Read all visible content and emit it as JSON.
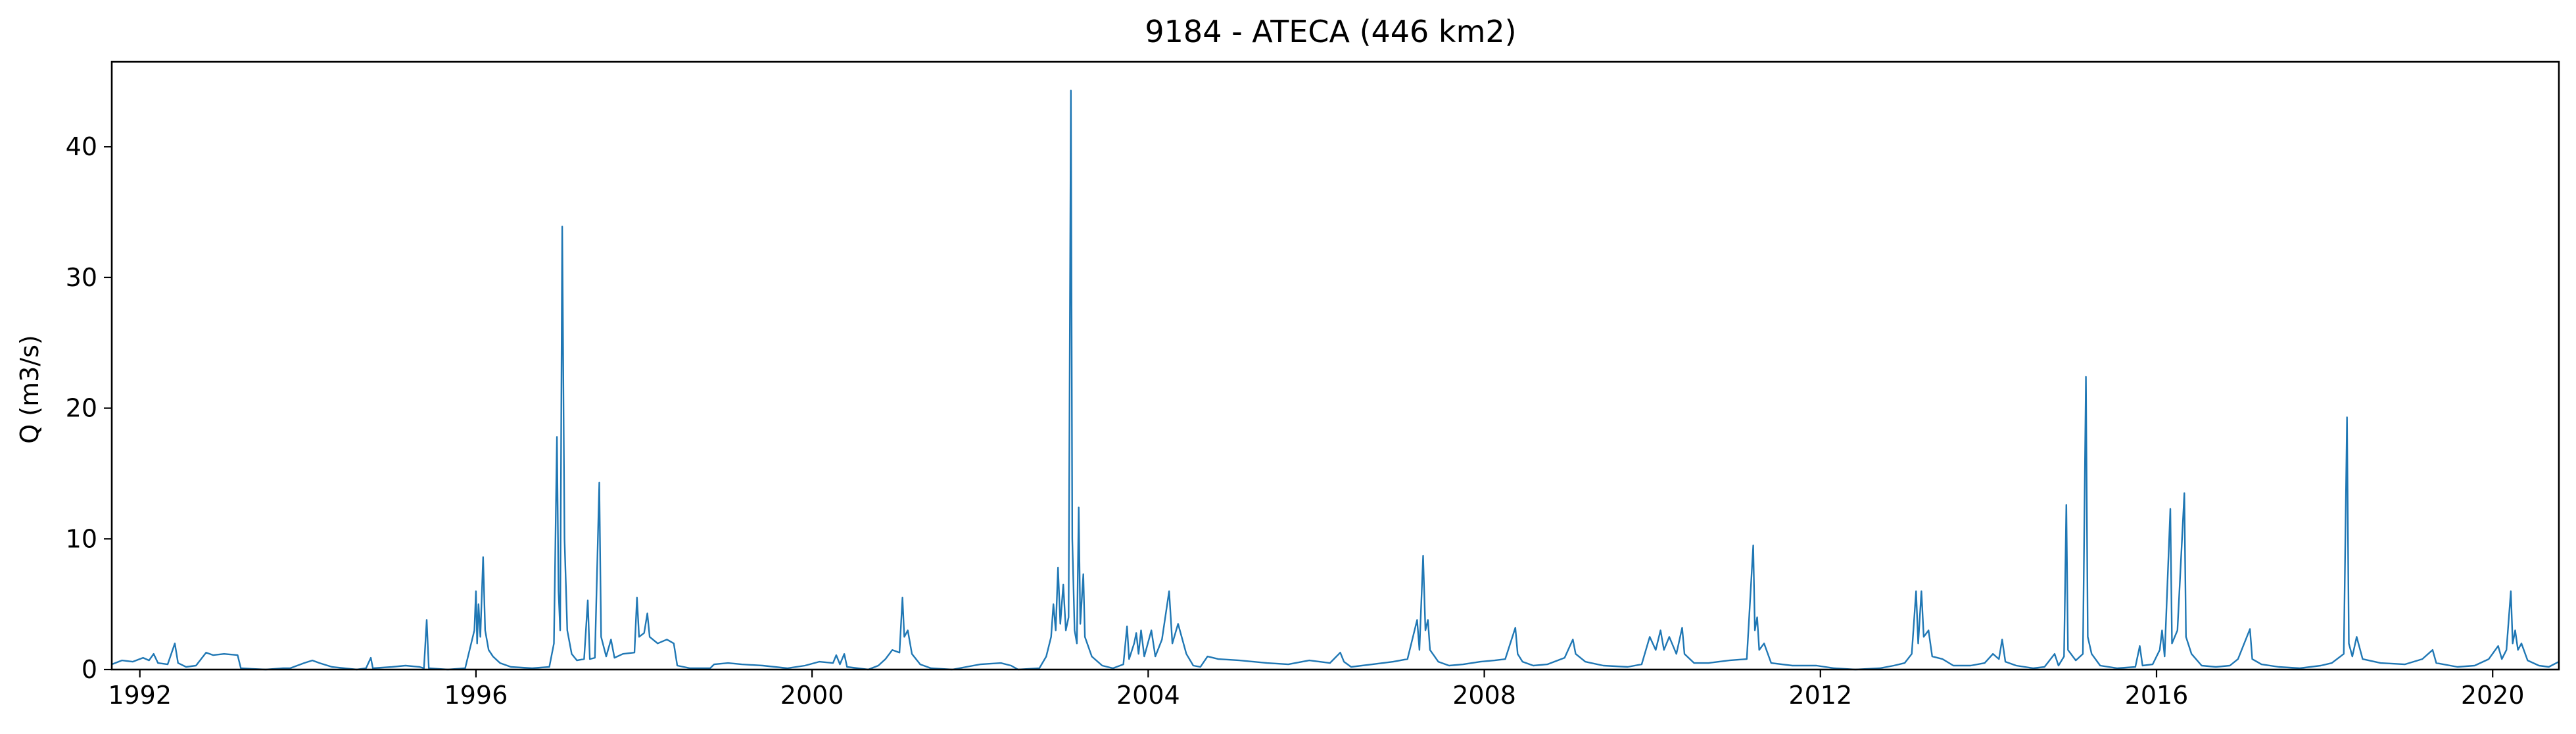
{
  "chart_data": {
    "type": "line",
    "title": "9184 - ATECA (446 km2)",
    "xlabel": "",
    "ylabel": "Q (m3/s)",
    "xlim": [
      "1991-09-01",
      "2020-10-15"
    ],
    "ylim": [
      0,
      46.5
    ],
    "x_ticks": [
      "1992",
      "1996",
      "2000",
      "2004",
      "2008",
      "2012",
      "2016",
      "2020"
    ],
    "y_ticks": [
      0,
      10,
      20,
      30,
      40
    ],
    "grid": false,
    "legend": "none",
    "series": [
      {
        "color": "#1f77b4",
        "points": [
          [
            "1991-09-01",
            0.4
          ],
          [
            "1991-10-15",
            0.7
          ],
          [
            "1991-12-01",
            0.6
          ],
          [
            "1992-01-15",
            0.9
          ],
          [
            "1992-02-10",
            0.7
          ],
          [
            "1992-03-01",
            1.2
          ],
          [
            "1992-03-20",
            0.5
          ],
          [
            "1992-05-01",
            0.4
          ],
          [
            "1992-06-01",
            2.0
          ],
          [
            "1992-06-15",
            0.5
          ],
          [
            "1992-07-20",
            0.2
          ],
          [
            "1992-09-01",
            0.3
          ],
          [
            "1992-10-15",
            1.3
          ],
          [
            "1992-11-15",
            1.1
          ],
          [
            "1993-01-01",
            1.2
          ],
          [
            "1993-03-01",
            1.1
          ],
          [
            "1993-03-15",
            0.1
          ],
          [
            "1993-07-01",
            0.0
          ],
          [
            "1993-09-15",
            0.1
          ],
          [
            "1993-10-15",
            0.1
          ],
          [
            "1993-12-15",
            0.5
          ],
          [
            "1994-01-20",
            0.7
          ],
          [
            "1994-02-20",
            0.5
          ],
          [
            "1994-04-15",
            0.2
          ],
          [
            "1994-08-01",
            0.0
          ],
          [
            "1994-09-10",
            0.1
          ],
          [
            "1994-10-01",
            0.9
          ],
          [
            "1994-10-10",
            0.1
          ],
          [
            "1995-01-01",
            0.2
          ],
          [
            "1995-03-01",
            0.3
          ],
          [
            "1995-05-01",
            0.2
          ],
          [
            "1995-05-20",
            0.1
          ],
          [
            "1995-06-01",
            3.8
          ],
          [
            "1995-06-10",
            0.1
          ],
          [
            "1995-09-01",
            0.0
          ],
          [
            "1995-11-15",
            0.1
          ],
          [
            "1995-12-25",
            3.0
          ],
          [
            "1996-01-01",
            6.0
          ],
          [
            "1996-01-06",
            2.0
          ],
          [
            "1996-01-12",
            5.0
          ],
          [
            "1996-01-20",
            2.5
          ],
          [
            "1996-02-01",
            8.6
          ],
          [
            "1996-02-10",
            3.0
          ],
          [
            "1996-02-25",
            1.5
          ],
          [
            "1996-03-15",
            1.0
          ],
          [
            "1996-04-15",
            0.5
          ],
          [
            "1996-06-01",
            0.2
          ],
          [
            "1996-09-01",
            0.1
          ],
          [
            "1996-11-15",
            0.2
          ],
          [
            "1996-12-05",
            2.0
          ],
          [
            "1996-12-18",
            17.8
          ],
          [
            "1996-12-25",
            6.0
          ],
          [
            "1997-01-01",
            3.0
          ],
          [
            "1997-01-10",
            33.9
          ],
          [
            "1997-01-20",
            10.0
          ],
          [
            "1997-02-01",
            3.0
          ],
          [
            "1997-02-20",
            1.2
          ],
          [
            "1997-03-15",
            0.7
          ],
          [
            "1997-04-15",
            0.8
          ],
          [
            "1997-05-01",
            5.3
          ],
          [
            "1997-05-10",
            0.8
          ],
          [
            "1997-06-01",
            0.9
          ],
          [
            "1997-06-20",
            14.3
          ],
          [
            "1997-06-28",
            2.5
          ],
          [
            "1997-07-20",
            1.0
          ],
          [
            "1997-08-10",
            2.3
          ],
          [
            "1997-08-25",
            0.9
          ],
          [
            "1997-10-01",
            1.2
          ],
          [
            "1997-11-20",
            1.3
          ],
          [
            "1997-12-01",
            5.5
          ],
          [
            "1997-12-10",
            2.5
          ],
          [
            "1998-01-01",
            2.8
          ],
          [
            "1998-01-15",
            4.3
          ],
          [
            "1998-01-25",
            2.5
          ],
          [
            "1998-03-01",
            2.0
          ],
          [
            "1998-04-10",
            2.3
          ],
          [
            "1998-05-10",
            2.0
          ],
          [
            "1998-05-25",
            0.3
          ],
          [
            "1998-07-20",
            0.1
          ],
          [
            "1998-10-15",
            0.1
          ],
          [
            "1998-11-01",
            0.4
          ],
          [
            "1999-01-01",
            0.5
          ],
          [
            "1999-03-01",
            0.4
          ],
          [
            "1999-06-01",
            0.3
          ],
          [
            "1999-09-15",
            0.1
          ],
          [
            "1999-12-01",
            0.3
          ],
          [
            "2000-02-01",
            0.6
          ],
          [
            "2000-04-01",
            0.5
          ],
          [
            "2000-04-15",
            1.1
          ],
          [
            "2000-05-01",
            0.4
          ],
          [
            "2000-05-20",
            1.2
          ],
          [
            "2000-06-01",
            0.2
          ],
          [
            "2000-09-01",
            0.0
          ],
          [
            "2000-10-15",
            0.3
          ],
          [
            "2000-11-15",
            0.8
          ],
          [
            "2000-12-15",
            1.5
          ],
          [
            "2001-01-15",
            1.3
          ],
          [
            "2001-01-28",
            5.5
          ],
          [
            "2001-02-05",
            2.5
          ],
          [
            "2001-02-20",
            3.0
          ],
          [
            "2001-03-10",
            1.2
          ],
          [
            "2001-04-15",
            0.4
          ],
          [
            "2001-06-01",
            0.1
          ],
          [
            "2001-09-01",
            0.0
          ],
          [
            "2001-11-01",
            0.2
          ],
          [
            "2002-01-01",
            0.4
          ],
          [
            "2002-04-01",
            0.5
          ],
          [
            "2002-05-15",
            0.3
          ],
          [
            "2002-06-15",
            0.0
          ],
          [
            "2002-09-15",
            0.1
          ],
          [
            "2002-10-15",
            1.0
          ],
          [
            "2002-11-05",
            2.5
          ],
          [
            "2002-11-15",
            5.0
          ],
          [
            "2002-11-25",
            3.0
          ],
          [
            "2002-12-05",
            7.8
          ],
          [
            "2002-12-15",
            3.5
          ],
          [
            "2002-12-28",
            6.5
          ],
          [
            "2003-01-08",
            3.0
          ],
          [
            "2003-01-20",
            4.0
          ],
          [
            "2003-01-30",
            44.3
          ],
          [
            "2003-02-05",
            10.0
          ],
          [
            "2003-02-15",
            3.0
          ],
          [
            "2003-02-25",
            2.0
          ],
          [
            "2003-03-05",
            12.4
          ],
          [
            "2003-03-12",
            3.5
          ],
          [
            "2003-03-25",
            7.3
          ],
          [
            "2003-04-01",
            2.5
          ],
          [
            "2003-05-01",
            1.0
          ],
          [
            "2003-06-15",
            0.3
          ],
          [
            "2003-08-01",
            0.1
          ],
          [
            "2003-09-15",
            0.4
          ],
          [
            "2003-10-01",
            3.3
          ],
          [
            "2003-10-10",
            0.8
          ],
          [
            "2003-11-01",
            2.0
          ],
          [
            "2003-11-10",
            2.8
          ],
          [
            "2003-11-20",
            1.2
          ],
          [
            "2003-12-01",
            3.0
          ],
          [
            "2003-12-15",
            1.0
          ],
          [
            "2004-01-15",
            3.0
          ],
          [
            "2004-02-01",
            1.0
          ],
          [
            "2004-03-01",
            2.3
          ],
          [
            "2004-04-01",
            6.0
          ],
          [
            "2004-04-15",
            2.0
          ],
          [
            "2004-05-10",
            3.5
          ],
          [
            "2004-06-15",
            1.2
          ],
          [
            "2004-07-15",
            0.3
          ],
          [
            "2004-08-15",
            0.2
          ],
          [
            "2004-09-15",
            1.0
          ],
          [
            "2004-11-01",
            0.8
          ],
          [
            "2005-02-01",
            0.7
          ],
          [
            "2005-06-01",
            0.5
          ],
          [
            "2005-09-01",
            0.4
          ],
          [
            "2005-12-01",
            0.7
          ],
          [
            "2006-03-01",
            0.5
          ],
          [
            "2006-04-15",
            1.3
          ],
          [
            "2006-05-01",
            0.6
          ],
          [
            "2006-06-01",
            0.2
          ],
          [
            "2006-09-01",
            0.4
          ],
          [
            "2006-12-01",
            0.6
          ],
          [
            "2007-02-01",
            0.8
          ],
          [
            "2007-03-15",
            3.8
          ],
          [
            "2007-03-25",
            1.5
          ],
          [
            "2007-04-10",
            8.7
          ],
          [
            "2007-04-20",
            3.0
          ],
          [
            "2007-05-01",
            3.8
          ],
          [
            "2007-05-10",
            1.5
          ],
          [
            "2007-06-15",
            0.6
          ],
          [
            "2007-08-01",
            0.3
          ],
          [
            "2007-10-01",
            0.4
          ],
          [
            "2007-12-15",
            0.6
          ],
          [
            "2008-02-15",
            0.7
          ],
          [
            "2008-04-01",
            0.8
          ],
          [
            "2008-05-15",
            3.2
          ],
          [
            "2008-05-25",
            1.2
          ],
          [
            "2008-06-15",
            0.6
          ],
          [
            "2008-08-01",
            0.3
          ],
          [
            "2008-10-01",
            0.4
          ],
          [
            "2008-12-15",
            0.9
          ],
          [
            "2009-01-20",
            2.3
          ],
          [
            "2009-02-01",
            1.2
          ],
          [
            "2009-03-15",
            0.6
          ],
          [
            "2009-06-01",
            0.3
          ],
          [
            "2009-09-15",
            0.2
          ],
          [
            "2009-11-15",
            0.4
          ],
          [
            "2009-12-20",
            2.5
          ],
          [
            "2010-01-15",
            1.5
          ],
          [
            "2010-02-05",
            3.0
          ],
          [
            "2010-02-20",
            1.5
          ],
          [
            "2010-03-15",
            2.5
          ],
          [
            "2010-04-15",
            1.2
          ],
          [
            "2010-05-10",
            3.2
          ],
          [
            "2010-05-20",
            1.2
          ],
          [
            "2010-07-01",
            0.5
          ],
          [
            "2010-09-01",
            0.5
          ],
          [
            "2010-12-01",
            0.7
          ],
          [
            "2011-02-15",
            0.8
          ],
          [
            "2011-03-15",
            9.5
          ],
          [
            "2011-03-22",
            3.0
          ],
          [
            "2011-04-01",
            4.0
          ],
          [
            "2011-04-10",
            1.5
          ],
          [
            "2011-05-01",
            2.0
          ],
          [
            "2011-06-01",
            0.5
          ],
          [
            "2011-09-01",
            0.3
          ],
          [
            "2011-12-15",
            0.3
          ],
          [
            "2012-03-01",
            0.1
          ],
          [
            "2012-06-01",
            0.0
          ],
          [
            "2012-09-15",
            0.1
          ],
          [
            "2012-11-15",
            0.3
          ],
          [
            "2013-01-01",
            0.5
          ],
          [
            "2013-02-01",
            1.2
          ],
          [
            "2013-02-20",
            6.0
          ],
          [
            "2013-03-01",
            2.0
          ],
          [
            "2013-03-15",
            6.0
          ],
          [
            "2013-03-25",
            2.5
          ],
          [
            "2013-04-15",
            3.0
          ],
          [
            "2013-05-01",
            1.0
          ],
          [
            "2013-06-15",
            0.8
          ],
          [
            "2013-08-01",
            0.3
          ],
          [
            "2013-10-15",
            0.3
          ],
          [
            "2013-12-15",
            0.5
          ],
          [
            "2014-01-20",
            1.2
          ],
          [
            "2014-02-15",
            0.8
          ],
          [
            "2014-03-01",
            2.3
          ],
          [
            "2014-03-15",
            0.6
          ],
          [
            "2014-05-01",
            0.3
          ],
          [
            "2014-07-15",
            0.1
          ],
          [
            "2014-09-01",
            0.2
          ],
          [
            "2014-10-15",
            1.2
          ],
          [
            "2014-11-01",
            0.3
          ],
          [
            "2014-11-25",
            1.0
          ],
          [
            "2014-12-05",
            12.6
          ],
          [
            "2014-12-12",
            1.5
          ],
          [
            "2015-01-15",
            0.7
          ],
          [
            "2015-02-15",
            1.2
          ],
          [
            "2015-02-28",
            22.4
          ],
          [
            "2015-03-08",
            2.5
          ],
          [
            "2015-03-25",
            1.2
          ],
          [
            "2015-05-01",
            0.3
          ],
          [
            "2015-07-15",
            0.1
          ],
          [
            "2015-10-01",
            0.2
          ],
          [
            "2015-10-20",
            1.8
          ],
          [
            "2015-11-01",
            0.3
          ],
          [
            "2015-12-15",
            0.4
          ],
          [
            "2016-01-15",
            1.5
          ],
          [
            "2016-01-25",
            3.0
          ],
          [
            "2016-02-05",
            1.0
          ],
          [
            "2016-03-01",
            12.3
          ],
          [
            "2016-03-08",
            2.0
          ],
          [
            "2016-04-01",
            3.0
          ],
          [
            "2016-05-01",
            13.5
          ],
          [
            "2016-05-08",
            2.5
          ],
          [
            "2016-06-01",
            1.2
          ],
          [
            "2016-07-15",
            0.3
          ],
          [
            "2016-09-15",
            0.2
          ],
          [
            "2016-11-15",
            0.3
          ],
          [
            "2016-12-20",
            0.8
          ],
          [
            "2017-02-10",
            3.1
          ],
          [
            "2017-02-20",
            0.8
          ],
          [
            "2017-04-01",
            0.4
          ],
          [
            "2017-06-15",
            0.2
          ],
          [
            "2017-09-15",
            0.1
          ],
          [
            "2017-12-15",
            0.3
          ],
          [
            "2018-02-01",
            0.5
          ],
          [
            "2018-03-25",
            1.2
          ],
          [
            "2018-04-08",
            19.3
          ],
          [
            "2018-04-16",
            2.0
          ],
          [
            "2018-05-01",
            1.0
          ],
          [
            "2018-05-20",
            2.5
          ],
          [
            "2018-06-15",
            0.8
          ],
          [
            "2018-09-01",
            0.5
          ],
          [
            "2018-12-15",
            0.4
          ],
          [
            "2019-03-01",
            0.8
          ],
          [
            "2019-04-15",
            1.5
          ],
          [
            "2019-05-01",
            0.5
          ],
          [
            "2019-08-01",
            0.2
          ],
          [
            "2019-10-15",
            0.3
          ],
          [
            "2019-12-15",
            0.8
          ],
          [
            "2020-01-25",
            1.8
          ],
          [
            "2020-02-10",
            0.8
          ],
          [
            "2020-03-01",
            1.5
          ],
          [
            "2020-03-20",
            6.0
          ],
          [
            "2020-03-28",
            2.0
          ],
          [
            "2020-04-08",
            3.0
          ],
          [
            "2020-04-20",
            1.5
          ],
          [
            "2020-05-05",
            2.0
          ],
          [
            "2020-06-01",
            0.7
          ],
          [
            "2020-07-20",
            0.3
          ],
          [
            "2020-09-01",
            0.2
          ],
          [
            "2020-10-15",
            0.6
          ]
        ]
      }
    ]
  }
}
